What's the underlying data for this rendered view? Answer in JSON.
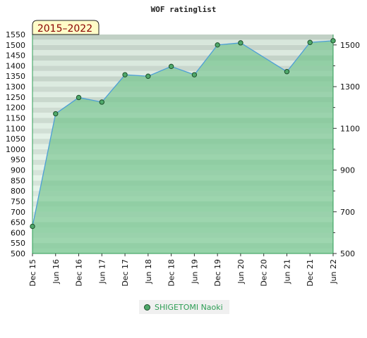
{
  "chart_data": {
    "type": "area",
    "title": "WOF ratinglist",
    "period_badge": "2015–2022",
    "x": [
      "Dec 15",
      "Jun 16",
      "Dec 16",
      "Jun 17",
      "Dec 17",
      "Jun 18",
      "Dec 18",
      "Jun 19",
      "Dec 19",
      "Jun 20",
      "Dec 20",
      "Jun 21",
      "Dec 21",
      "Jun 22"
    ],
    "series": [
      {
        "name": "SHIGETOMI Naoki",
        "values": [
          630,
          1170,
          1248,
          1226,
          1357,
          1350,
          1397,
          1357,
          1500,
          1510,
          null,
          1372,
          1512,
          1520
        ]
      }
    ],
    "ylim": [
      500,
      1550
    ],
    "left_ticks": [
      500,
      550,
      600,
      650,
      700,
      750,
      800,
      850,
      900,
      950,
      1000,
      1050,
      1100,
      1150,
      1200,
      1250,
      1300,
      1350,
      1400,
      1450,
      1500,
      1550
    ],
    "right_ticks": [
      500,
      700,
      900,
      1100,
      1300,
      1500
    ],
    "line_color": "#4d9fd6",
    "fill_color": "#7ac692",
    "marker_color": "#4fa86a",
    "legend": "bottom-center"
  }
}
